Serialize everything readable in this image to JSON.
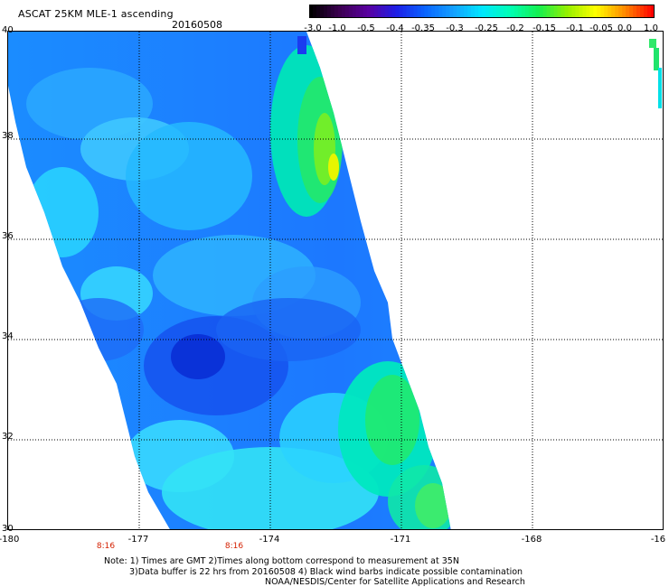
{
  "title": "ASCAT 25KM MLE-1 ascending",
  "date": "20160508",
  "colorbar": {
    "ticks": [
      "-3.0",
      "-1.0",
      "-0.5",
      "-0.4",
      "-0.35",
      "-0.3",
      "-0.25",
      "-0.2",
      "-0.15",
      "-0.1",
      "-0.05",
      "0.0",
      "1.0"
    ],
    "colors": [
      "#000000",
      "#3c0050",
      "#5a00a0",
      "#1e1ee6",
      "#0a64ff",
      "#14a0ff",
      "#00e6ff",
      "#00ffb4",
      "#14f050",
      "#96f000",
      "#ffff00",
      "#ff8c00",
      "#ff0000"
    ]
  },
  "lat_labels": [
    "40",
    "38",
    "36",
    "34",
    "32",
    "30"
  ],
  "lon_labels": [
    "-180",
    "-177",
    "-174",
    "-171",
    "-168",
    "-16"
  ],
  "times": [
    "8:16",
    "8:16"
  ],
  "notes": {
    "line1": "Note: 1) Times are GMT 2)Times along bottom correspond to measurement at 35N",
    "line2": "3)Data buffer is 22 hrs from 20160508 4) Black wind barbs indicate possible contamination",
    "line3": "NOAA/NESDIS/Center for Satellite Applications and Research"
  }
}
